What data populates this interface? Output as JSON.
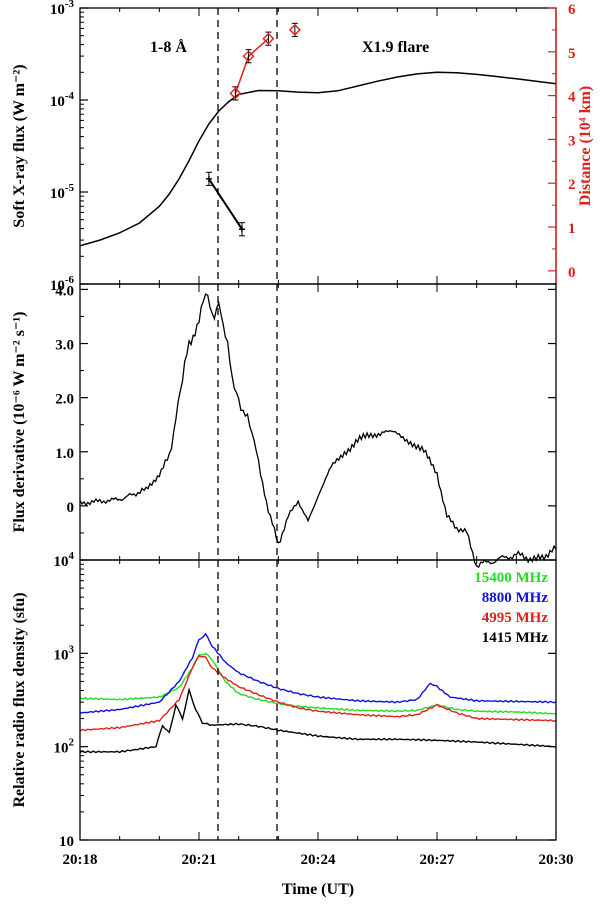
{
  "chart_data": [
    {
      "type": "line",
      "panel": "top",
      "x_range": [
        "20:18",
        "20:30"
      ],
      "ylabel": "Soft X-ray flux (W m⁻²)",
      "y_scale": "log",
      "ylim": [
        1e-06,
        0.001
      ],
      "y_ticks": [
        "10⁻⁶",
        "10⁻⁵",
        "10⁻⁴",
        "10⁻³"
      ],
      "y2label": "Distance (10⁴ km)",
      "y2lim": [
        -0.3,
        6
      ],
      "y2_ticks": [
        "0",
        "1",
        "2",
        "3",
        "4",
        "5",
        "6"
      ],
      "annotations": [
        "1-8 Å",
        "X1.9 flare"
      ],
      "series": [
        {
          "role": "soft-xray-flux",
          "color": "#000000",
          "x": [
            "20:18",
            "20:18:30",
            "20:19",
            "20:19:30",
            "20:20",
            "20:20:15",
            "20:20:30",
            "20:20:45",
            "20:21",
            "20:21:15",
            "20:21:30",
            "20:21:45",
            "20:22",
            "20:22:30",
            "20:23",
            "20:23:30",
            "20:24",
            "20:24:30",
            "20:25",
            "20:25:30",
            "20:26",
            "20:26:30",
            "20:27",
            "20:27:30",
            "20:28",
            "20:28:30",
            "20:29",
            "20:29:30",
            "20:30"
          ],
          "y": [
            2.6e-06,
            3e-06,
            3.6e-06,
            4.6e-06,
            7e-06,
            9.5e-06,
            1.4e-05,
            2.2e-05,
            3.6e-05,
            5.5e-05,
            7.6e-05,
            9.6e-05,
            0.000115,
            0.000127,
            0.000126,
            0.000122,
            0.00012,
            0.000126,
            0.000142,
            0.00016,
            0.000178,
            0.000192,
            0.0002,
            0.000198,
            0.00019,
            0.00018,
            0.00017,
            0.00016,
            0.00015
          ]
        },
        {
          "role": "distance-black",
          "axis": "right",
          "color": "#000000",
          "x": [
            "20:21:15",
            "20:22:05"
          ],
          "y": [
            2.1,
            0.95
          ],
          "err": [
            0.15,
            0.15
          ]
        },
        {
          "role": "distance-red",
          "axis": "right",
          "color": "#e0201b",
          "x": [
            "20:21:55",
            "20:22:15",
            "20:22:45",
            "20:23:25"
          ],
          "y": [
            4.05,
            4.9,
            5.3,
            5.5
          ],
          "err": [
            0.15,
            0.15,
            0.15,
            0.15
          ],
          "line_points": 3
        }
      ]
    },
    {
      "type": "line",
      "panel": "middle",
      "x_range": [
        "20:18",
        "20:30"
      ],
      "ylabel": "Flux derivative (10⁻⁶ W m⁻² s⁻¹)",
      "ylim": [
        -1.0,
        4.1
      ],
      "y_ticks": [
        "0",
        "1.0",
        "2.0",
        "3.0",
        "4.0"
      ],
      "series": [
        {
          "role": "flux-derivative",
          "color": "#000000",
          "x": [
            "20:18",
            "20:19",
            "20:19:40",
            "20:20",
            "20:20:15",
            "20:20:25",
            "20:20:35",
            "20:20:45",
            "20:21",
            "20:21:10",
            "20:21:20",
            "20:21:30",
            "20:21:40",
            "20:21:50",
            "20:22",
            "20:22:10",
            "20:22:20",
            "20:22:30",
            "20:22:45",
            "20:23",
            "20:23:15",
            "20:23:30",
            "20:23:45",
            "20:24",
            "20:24:20",
            "20:24:40",
            "20:25",
            "20:25:20",
            "20:25:40",
            "20:26",
            "20:26:20",
            "20:26:40",
            "20:27",
            "20:27:15",
            "20:27:30",
            "20:27:45",
            "20:28",
            "20:28:30",
            "20:29",
            "20:29:30",
            "20:30"
          ],
          "y": [
            0.05,
            0.12,
            0.3,
            0.6,
            0.9,
            1.6,
            2.4,
            3.0,
            3.4,
            4.0,
            3.5,
            3.7,
            3.2,
            2.4,
            1.9,
            1.7,
            1.4,
            0.8,
            -0.1,
            -0.7,
            -0.2,
            0.1,
            -0.3,
            0.2,
            0.7,
            1.0,
            1.2,
            1.3,
            1.4,
            1.3,
            1.2,
            1.0,
            0.6,
            -0.2,
            -0.4,
            -0.5,
            -1.1,
            -1.0,
            -0.9,
            -1.0,
            -0.8
          ]
        }
      ]
    },
    {
      "type": "line",
      "panel": "bottom",
      "x_range": [
        "20:18",
        "20:30"
      ],
      "x_ticks": [
        "20:18",
        "20:21",
        "20:24",
        "20:27",
        "20:30"
      ],
      "xlabel": "Time (UT)",
      "ylabel": "Relative radio flux density (sfu)",
      "y_scale": "log",
      "ylim": [
        10,
        10000
      ],
      "y_ticks": [
        "10",
        "10²",
        "10³",
        "10⁴"
      ],
      "legend_placement": "top-right",
      "series": [
        {
          "name": "15400 MHz",
          "color": "#22dd22",
          "x": [
            "20:18",
            "20:19",
            "20:20",
            "20:20:30",
            "20:20:50",
            "20:21",
            "20:21:10",
            "20:21:20",
            "20:21:40",
            "20:22",
            "20:22:30",
            "20:23",
            "20:23:30",
            "20:24",
            "20:25",
            "20:26",
            "20:26:30",
            "20:27",
            "20:27:30",
            "20:28",
            "20:29",
            "20:30"
          ],
          "y": [
            330,
            320,
            340,
            430,
            700,
            950,
            1000,
            850,
            500,
            370,
            320,
            290,
            270,
            260,
            245,
            240,
            245,
            280,
            250,
            240,
            235,
            225
          ]
        },
        {
          "name": "8800 MHz",
          "color": "#1010dd",
          "x": [
            "20:18",
            "20:19",
            "20:20",
            "20:20:30",
            "20:20:50",
            "20:21",
            "20:21:10",
            "20:21:20",
            "20:21:40",
            "20:22",
            "20:22:30",
            "20:23",
            "20:23:30",
            "20:24",
            "20:25",
            "20:26",
            "20:26:30",
            "20:26:50",
            "20:27",
            "20:27:20",
            "20:28",
            "20:29",
            "20:30"
          ],
          "y": [
            230,
            250,
            300,
            500,
            900,
            1400,
            1600,
            1200,
            800,
            620,
            500,
            420,
            370,
            340,
            310,
            300,
            320,
            480,
            440,
            340,
            310,
            305,
            300
          ]
        },
        {
          "name": "4995 MHz",
          "color": "#e0201b",
          "x": [
            "20:18",
            "20:19",
            "20:20",
            "20:20:30",
            "20:20:50",
            "20:21",
            "20:21:10",
            "20:21:20",
            "20:21:40",
            "20:22",
            "20:22:30",
            "20:23",
            "20:23:30",
            "20:24",
            "20:25",
            "20:26",
            "20:26:30",
            "20:27",
            "20:27:30",
            "20:28",
            "20:29",
            "20:30"
          ],
          "y": [
            150,
            160,
            190,
            320,
            700,
            950,
            900,
            700,
            540,
            440,
            360,
            300,
            260,
            240,
            220,
            210,
            220,
            280,
            230,
            200,
            195,
            190
          ]
        },
        {
          "name": "1415 MHz",
          "color": "#000000",
          "x": [
            "20:18",
            "20:19",
            "20:19:55",
            "20:20:05",
            "20:20:15",
            "20:20:25",
            "20:20:35",
            "20:20:45",
            "20:20:55",
            "20:21:05",
            "20:21:20",
            "20:22",
            "20:22:30",
            "20:23",
            "20:24",
            "20:25",
            "20:26",
            "20:27",
            "20:28",
            "20:29",
            "20:30"
          ],
          "y": [
            88,
            88,
            100,
            170,
            140,
            280,
            200,
            400,
            250,
            180,
            170,
            175,
            165,
            150,
            130,
            120,
            120,
            117,
            112,
            106,
            100
          ]
        }
      ]
    }
  ]
}
